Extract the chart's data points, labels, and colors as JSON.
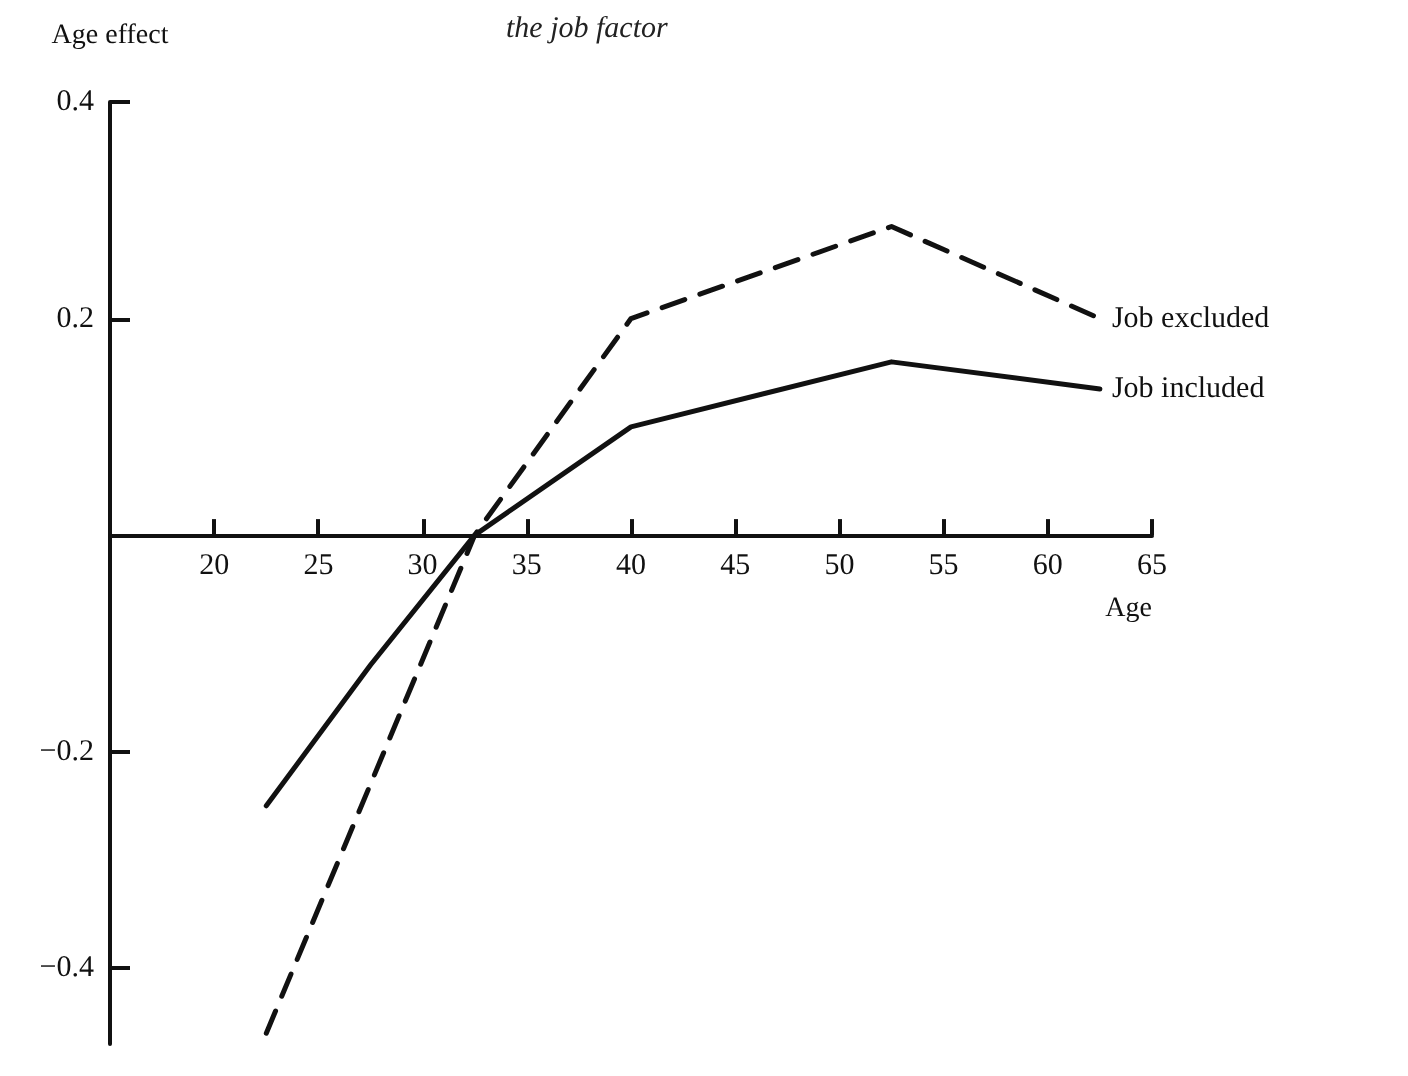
{
  "chart_data": {
    "type": "line",
    "title": "the job factor",
    "xlabel": "Age",
    "ylabel": "Age effect",
    "xlim": [
      15,
      65
    ],
    "xticks": [
      20,
      25,
      30,
      35,
      40,
      45,
      50,
      55,
      60,
      65
    ],
    "ylim": [
      -0.47,
      0.4
    ],
    "yticks": [
      {
        "value": -0.4,
        "label": "−0.4"
      },
      {
        "value": -0.2,
        "label": "−0.2"
      },
      0.2,
      0.4
    ],
    "grid": false,
    "legend": false,
    "marker": "none",
    "series": [
      {
        "name": "Job excluded",
        "color": "#111111",
        "line_style": "dashed",
        "x": [
          22.5,
          32.5,
          40,
          52.5,
          62.5
        ],
        "values": [
          -0.46,
          0,
          0.2,
          0.285,
          0.2
        ]
      },
      {
        "name": "Job included",
        "color": "#111111",
        "line_style": "solid",
        "x": [
          22.5,
          27.5,
          32.5,
          40,
          52.5,
          62.5
        ],
        "values": [
          -0.25,
          -0.12,
          0,
          0.1,
          0.16,
          0.135
        ]
      }
    ]
  }
}
